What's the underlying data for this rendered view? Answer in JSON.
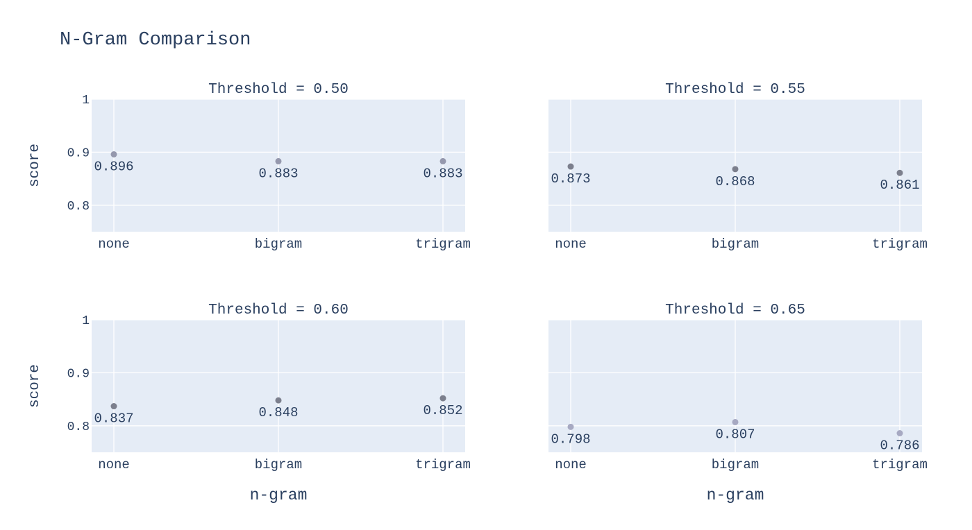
{
  "chart_data": {
    "type": "scatter",
    "title": "N-Gram Comparison",
    "xlabel": "n-gram",
    "ylabel": "score",
    "categories": [
      "none",
      "bigram",
      "trigram"
    ],
    "ylim": [
      0.75,
      1.0
    ],
    "yticks": [
      0.8,
      0.9,
      1
    ],
    "ytick_labels": [
      "0.8",
      "0.9",
      "1"
    ],
    "grid": true,
    "colors": {
      "plot_bg": "#e5ecf6",
      "grid": "#ffffff",
      "text": "#2a3f5f",
      "marker_dark": "#7f8290",
      "marker_light": "#a3a5be"
    },
    "panels": [
      {
        "title": "Threshold = 0.50",
        "values": [
          0.896,
          0.883,
          0.883
        ],
        "labels": [
          "0.896",
          "0.883",
          "0.883"
        ],
        "marker_color": "#9598ad"
      },
      {
        "title": "Threshold = 0.55",
        "values": [
          0.873,
          0.868,
          0.861
        ],
        "labels": [
          "0.873",
          "0.868",
          "0.861"
        ],
        "marker_color": "#7c7f8d"
      },
      {
        "title": "Threshold = 0.60",
        "values": [
          0.837,
          0.848,
          0.852
        ],
        "labels": [
          "0.837",
          "0.848",
          "0.852"
        ],
        "marker_color": "#7c7f8d"
      },
      {
        "title": "Threshold = 0.65",
        "values": [
          0.798,
          0.807,
          0.786
        ],
        "labels": [
          "0.798",
          "0.807",
          "0.786"
        ],
        "marker_color": "#a7a9c2"
      }
    ]
  }
}
